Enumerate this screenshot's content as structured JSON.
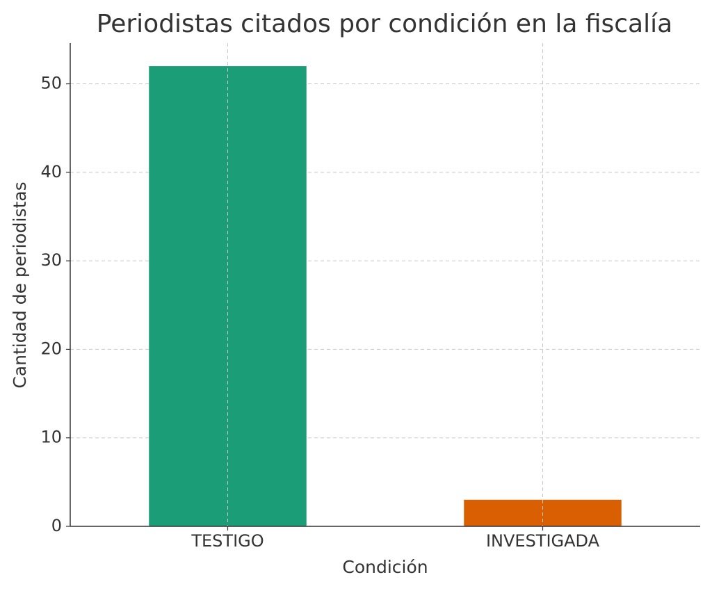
{
  "chart_data": {
    "type": "bar",
    "title": "Periodistas citados por condición en la fiscalía",
    "x_label": "Condición",
    "y_label": "Cantidad de periodistas",
    "categories": [
      "TESTIGO",
      "INVESTIGADA"
    ],
    "values": [
      52,
      3
    ],
    "colors": [
      "#1b9e77",
      "#d95f02"
    ],
    "ylim": [
      0,
      54.6
    ],
    "yticks": [
      0,
      10,
      20,
      30,
      40,
      50
    ],
    "grid": true
  }
}
